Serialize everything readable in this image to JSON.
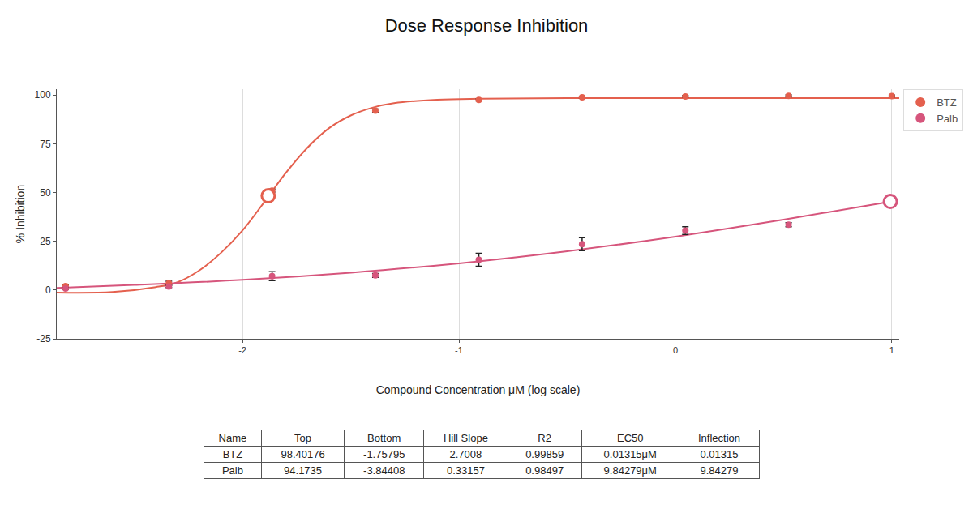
{
  "chart_data": {
    "type": "scatter",
    "title": "Dose Response Inhibition",
    "x_label": "Compound Concentration μM (log scale)",
    "y_label": "% Inhibition",
    "x": [
      -2.817,
      -2.34,
      -1.863,
      -1.386,
      -0.908,
      -0.431,
      0.046,
      0.523,
      1.0
    ],
    "xlim": [
      -2.858,
      1.034
    ],
    "xticks": [
      -2,
      -1,
      0,
      1
    ],
    "ylim": [
      -25,
      103
    ],
    "yticks": [
      -25,
      0,
      25,
      50,
      75,
      100
    ],
    "grid": "x",
    "legend": "right",
    "marker": "circle",
    "series": [
      {
        "name": "BTZ",
        "color": "#e4604e",
        "values": [
          2.0,
          3.5,
          51,
          92,
          97.5,
          98.8,
          99.3,
          99.6,
          99.5
        ],
        "errors": [
          0.5,
          1,
          0.8,
          0.8,
          0.5,
          0.5,
          0.5,
          0.5,
          0.5
        ],
        "fit": {
          "x": [
            -2.858,
            -2.6,
            -2.4,
            -2.3,
            -2.2,
            -2.1,
            -2.0,
            -1.9,
            -1.8,
            -1.7,
            -1.6,
            -1.5,
            -1.4,
            -1.3,
            -1.1,
            -0.9,
            -0.5,
            1.034
          ],
          "values": [
            -1.3,
            -1.0,
            1.5,
            4,
            10,
            19,
            30.5,
            45,
            60,
            73,
            83,
            89.5,
            93.5,
            95.8,
            97.6,
            98.1,
            98.4,
            98.4
          ]
        },
        "ec50_point": {
          "x": -1.881,
          "y": 48.3
        }
      },
      {
        "name": "Palb",
        "color": "#d6557c",
        "values": [
          0.8,
          1.8,
          7.1,
          7.5,
          15.5,
          23.5,
          30.5,
          33.5,
          null
        ],
        "errors": [
          0.5,
          0.5,
          2.3,
          1,
          3.3,
          3.3,
          2,
          1,
          null
        ],
        "fit": {
          "x": [
            -2.858,
            -2.5,
            -2.0,
            -1.5,
            -1.0,
            -0.5,
            0.0,
            0.5,
            1.0
          ],
          "values": [
            1.1,
            2.6,
            5.2,
            8.9,
            13.7,
            19.9,
            27.4,
            36.1,
            45.4
          ]
        },
        "ec50_point": {
          "x": 0.993,
          "y": 45.4
        }
      }
    ]
  },
  "table": {
    "header": [
      "Name",
      "Top",
      "Bottom",
      "Hill Slope",
      "R2",
      "EC50",
      "Inflection"
    ],
    "rows": [
      [
        "BTZ",
        "98.40176",
        "-1.75795",
        "2.7008",
        "0.99859",
        "0.01315μM",
        "0.01315"
      ],
      [
        "Palb",
        "94.1735",
        "-3.84408",
        "0.33157",
        "0.98497",
        "9.84279μM",
        "9.84279"
      ]
    ]
  }
}
